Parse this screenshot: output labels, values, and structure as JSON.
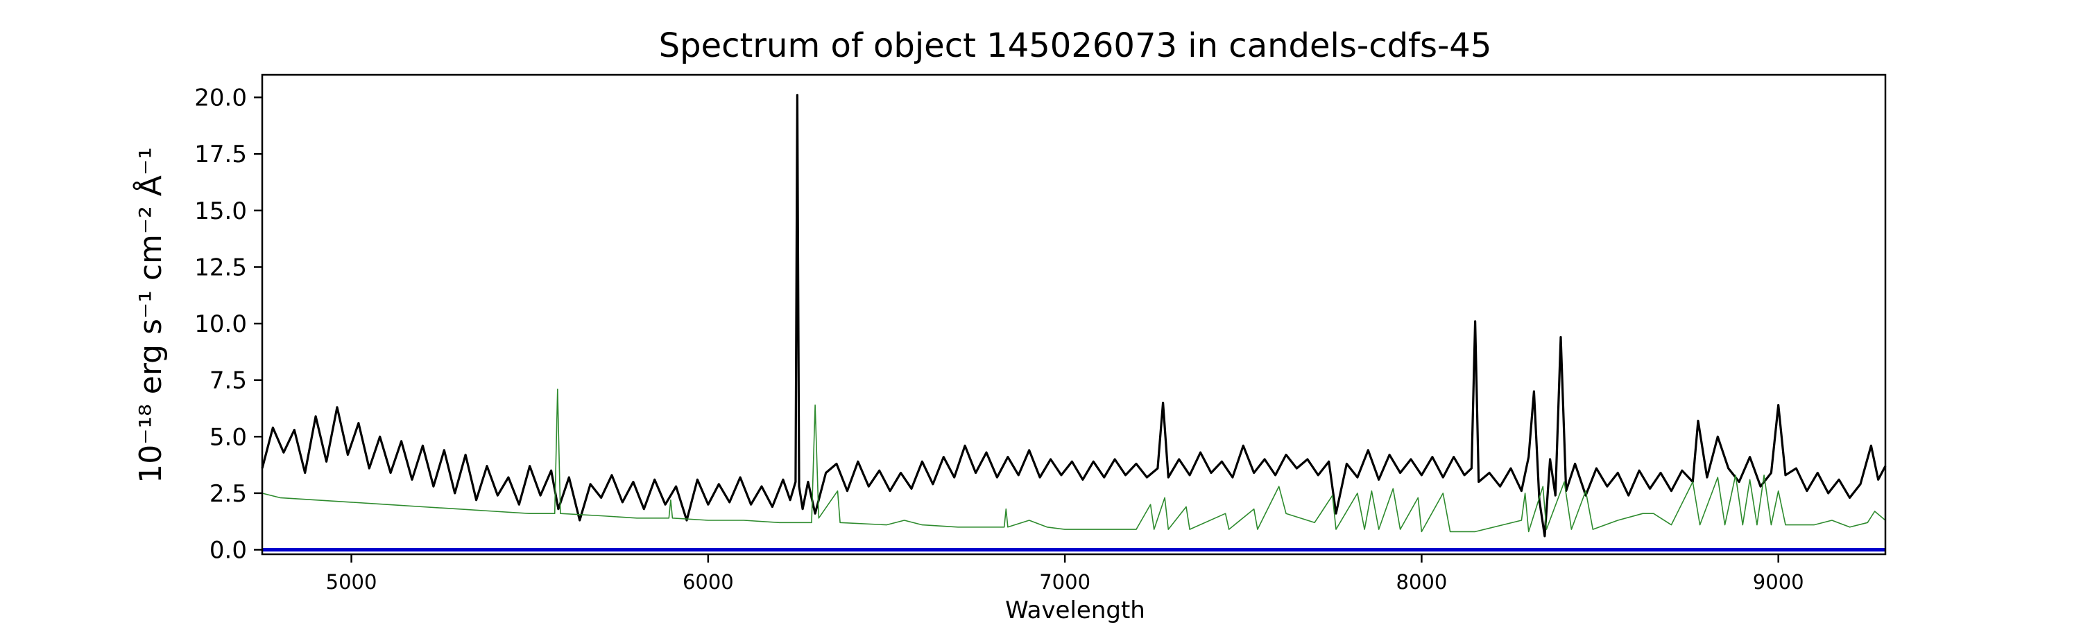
{
  "chart_data": {
    "type": "line",
    "title": "Spectrum of object 145026073 in candels-cdfs-45",
    "xlabel": "Wavelength",
    "ylabel": "10⁻¹⁸ erg s⁻¹ cm⁻² Å⁻¹",
    "xlim": [
      4750,
      9300
    ],
    "ylim": [
      -0.2,
      21.0
    ],
    "x_ticks": [
      5000,
      6000,
      7000,
      8000,
      9000
    ],
    "y_ticks": [
      "0.0",
      "2.5",
      "5.0",
      "7.5",
      "10.0",
      "12.5",
      "15.0",
      "17.5",
      "20.0"
    ],
    "grid": false,
    "legend": "none",
    "series": [
      {
        "color": "#000000",
        "points": [
          [
            4750,
            3.6
          ],
          [
            4780,
            5.4
          ],
          [
            4810,
            4.3
          ],
          [
            4840,
            5.3
          ],
          [
            4870,
            3.4
          ],
          [
            4900,
            5.9
          ],
          [
            4930,
            3.9
          ],
          [
            4960,
            6.3
          ],
          [
            4990,
            4.2
          ],
          [
            5020,
            5.6
          ],
          [
            5050,
            3.6
          ],
          [
            5080,
            5.0
          ],
          [
            5110,
            3.4
          ],
          [
            5140,
            4.8
          ],
          [
            5170,
            3.1
          ],
          [
            5200,
            4.6
          ],
          [
            5230,
            2.8
          ],
          [
            5260,
            4.4
          ],
          [
            5290,
            2.5
          ],
          [
            5320,
            4.2
          ],
          [
            5350,
            2.2
          ],
          [
            5380,
            3.7
          ],
          [
            5410,
            2.4
          ],
          [
            5440,
            3.2
          ],
          [
            5470,
            2.0
          ],
          [
            5500,
            3.7
          ],
          [
            5530,
            2.4
          ],
          [
            5560,
            3.5
          ],
          [
            5580,
            1.8
          ],
          [
            5610,
            3.2
          ],
          [
            5640,
            1.3
          ],
          [
            5670,
            2.9
          ],
          [
            5700,
            2.3
          ],
          [
            5730,
            3.3
          ],
          [
            5760,
            2.1
          ],
          [
            5790,
            3.0
          ],
          [
            5820,
            1.8
          ],
          [
            5850,
            3.1
          ],
          [
            5880,
            2.0
          ],
          [
            5910,
            2.8
          ],
          [
            5940,
            1.3
          ],
          [
            5970,
            3.1
          ],
          [
            6000,
            2.0
          ],
          [
            6030,
            2.9
          ],
          [
            6060,
            2.1
          ],
          [
            6090,
            3.2
          ],
          [
            6120,
            2.0
          ],
          [
            6150,
            2.8
          ],
          [
            6180,
            1.9
          ],
          [
            6210,
            3.1
          ],
          [
            6230,
            2.2
          ],
          [
            6245,
            3.0
          ],
          [
            6250,
            20.1
          ],
          [
            6255,
            2.8
          ],
          [
            6265,
            1.8
          ],
          [
            6280,
            3.0
          ],
          [
            6300,
            1.6
          ],
          [
            6330,
            3.4
          ],
          [
            6360,
            3.8
          ],
          [
            6390,
            2.6
          ],
          [
            6420,
            3.9
          ],
          [
            6450,
            2.8
          ],
          [
            6480,
            3.5
          ],
          [
            6510,
            2.6
          ],
          [
            6540,
            3.4
          ],
          [
            6570,
            2.7
          ],
          [
            6600,
            3.9
          ],
          [
            6630,
            2.9
          ],
          [
            6660,
            4.1
          ],
          [
            6690,
            3.2
          ],
          [
            6720,
            4.6
          ],
          [
            6750,
            3.4
          ],
          [
            6780,
            4.3
          ],
          [
            6810,
            3.2
          ],
          [
            6840,
            4.1
          ],
          [
            6870,
            3.3
          ],
          [
            6900,
            4.4
          ],
          [
            6930,
            3.2
          ],
          [
            6960,
            4.0
          ],
          [
            6990,
            3.3
          ],
          [
            7020,
            3.9
          ],
          [
            7050,
            3.1
          ],
          [
            7080,
            3.9
          ],
          [
            7110,
            3.2
          ],
          [
            7140,
            4.0
          ],
          [
            7170,
            3.3
          ],
          [
            7200,
            3.8
          ],
          [
            7230,
            3.2
          ],
          [
            7260,
            3.6
          ],
          [
            7275,
            6.5
          ],
          [
            7290,
            3.2
          ],
          [
            7320,
            4.0
          ],
          [
            7350,
            3.3
          ],
          [
            7380,
            4.3
          ],
          [
            7410,
            3.4
          ],
          [
            7440,
            3.9
          ],
          [
            7470,
            3.2
          ],
          [
            7500,
            4.6
          ],
          [
            7530,
            3.4
          ],
          [
            7560,
            4.0
          ],
          [
            7590,
            3.3
          ],
          [
            7620,
            4.2
          ],
          [
            7650,
            3.6
          ],
          [
            7680,
            4.0
          ],
          [
            7710,
            3.3
          ],
          [
            7740,
            3.9
          ],
          [
            7760,
            1.6
          ],
          [
            7790,
            3.8
          ],
          [
            7820,
            3.2
          ],
          [
            7850,
            4.4
          ],
          [
            7880,
            3.1
          ],
          [
            7910,
            4.2
          ],
          [
            7940,
            3.4
          ],
          [
            7970,
            4.0
          ],
          [
            8000,
            3.3
          ],
          [
            8030,
            4.1
          ],
          [
            8060,
            3.2
          ],
          [
            8090,
            4.1
          ],
          [
            8120,
            3.3
          ],
          [
            8140,
            3.6
          ],
          [
            8150,
            10.1
          ],
          [
            8160,
            3.0
          ],
          [
            8190,
            3.4
          ],
          [
            8220,
            2.8
          ],
          [
            8250,
            3.6
          ],
          [
            8280,
            2.6
          ],
          [
            8300,
            4.1
          ],
          [
            8315,
            7.0
          ],
          [
            8330,
            2.2
          ],
          [
            8345,
            0.6
          ],
          [
            8360,
            4.0
          ],
          [
            8375,
            2.4
          ],
          [
            8390,
            9.4
          ],
          [
            8405,
            2.6
          ],
          [
            8430,
            3.8
          ],
          [
            8460,
            2.4
          ],
          [
            8490,
            3.6
          ],
          [
            8520,
            2.8
          ],
          [
            8550,
            3.4
          ],
          [
            8580,
            2.4
          ],
          [
            8610,
            3.5
          ],
          [
            8640,
            2.7
          ],
          [
            8670,
            3.4
          ],
          [
            8700,
            2.6
          ],
          [
            8730,
            3.5
          ],
          [
            8760,
            3.0
          ],
          [
            8775,
            5.7
          ],
          [
            8800,
            3.2
          ],
          [
            8830,
            5.0
          ],
          [
            8860,
            3.6
          ],
          [
            8890,
            3.0
          ],
          [
            8920,
            4.1
          ],
          [
            8950,
            2.8
          ],
          [
            8980,
            3.4
          ],
          [
            9000,
            6.4
          ],
          [
            9020,
            3.3
          ],
          [
            9050,
            3.6
          ],
          [
            9080,
            2.6
          ],
          [
            9110,
            3.4
          ],
          [
            9140,
            2.5
          ],
          [
            9170,
            3.1
          ],
          [
            9200,
            2.3
          ],
          [
            9230,
            2.9
          ],
          [
            9260,
            4.6
          ],
          [
            9280,
            3.1
          ],
          [
            9300,
            3.7
          ]
        ]
      },
      {
        "color": "#2e8b2e",
        "points": [
          [
            4750,
            2.5
          ],
          [
            4800,
            2.3
          ],
          [
            4900,
            2.2
          ],
          [
            5000,
            2.1
          ],
          [
            5100,
            2.0
          ],
          [
            5200,
            1.9
          ],
          [
            5300,
            1.8
          ],
          [
            5400,
            1.7
          ],
          [
            5500,
            1.6
          ],
          [
            5570,
            1.6
          ],
          [
            5578,
            7.1
          ],
          [
            5586,
            1.6
          ],
          [
            5700,
            1.5
          ],
          [
            5800,
            1.4
          ],
          [
            5890,
            1.4
          ],
          [
            5895,
            2.2
          ],
          [
            5900,
            1.4
          ],
          [
            6000,
            1.3
          ],
          [
            6100,
            1.3
          ],
          [
            6200,
            1.2
          ],
          [
            6290,
            1.2
          ],
          [
            6300,
            6.4
          ],
          [
            6310,
            1.4
          ],
          [
            6363,
            2.6
          ],
          [
            6370,
            1.2
          ],
          [
            6500,
            1.1
          ],
          [
            6550,
            1.3
          ],
          [
            6600,
            1.1
          ],
          [
            6700,
            1.0
          ],
          [
            6830,
            1.0
          ],
          [
            6835,
            1.8
          ],
          [
            6840,
            1.0
          ],
          [
            6900,
            1.3
          ],
          [
            6950,
            1.0
          ],
          [
            7000,
            0.9
          ],
          [
            7100,
            0.9
          ],
          [
            7200,
            0.9
          ],
          [
            7240,
            2.0
          ],
          [
            7250,
            0.9
          ],
          [
            7280,
            2.3
          ],
          [
            7290,
            0.9
          ],
          [
            7340,
            1.9
          ],
          [
            7350,
            0.9
          ],
          [
            7450,
            1.6
          ],
          [
            7460,
            0.9
          ],
          [
            7530,
            1.8
          ],
          [
            7540,
            0.9
          ],
          [
            7600,
            2.8
          ],
          [
            7620,
            1.6
          ],
          [
            7700,
            1.2
          ],
          [
            7750,
            2.4
          ],
          [
            7760,
            0.9
          ],
          [
            7820,
            2.5
          ],
          [
            7840,
            0.9
          ],
          [
            7860,
            2.6
          ],
          [
            7880,
            0.9
          ],
          [
            7920,
            2.7
          ],
          [
            7940,
            0.9
          ],
          [
            7990,
            2.3
          ],
          [
            8000,
            0.8
          ],
          [
            8060,
            2.5
          ],
          [
            8080,
            0.8
          ],
          [
            8150,
            0.8
          ],
          [
            8280,
            1.3
          ],
          [
            8290,
            2.5
          ],
          [
            8300,
            0.8
          ],
          [
            8340,
            2.8
          ],
          [
            8350,
            0.9
          ],
          [
            8400,
            3.0
          ],
          [
            8420,
            0.9
          ],
          [
            8460,
            2.6
          ],
          [
            8480,
            0.9
          ],
          [
            8550,
            1.3
          ],
          [
            8620,
            1.6
          ],
          [
            8650,
            1.6
          ],
          [
            8700,
            1.1
          ],
          [
            8760,
            3.0
          ],
          [
            8780,
            1.1
          ],
          [
            8830,
            3.2
          ],
          [
            8850,
            1.1
          ],
          [
            8880,
            3.3
          ],
          [
            8900,
            1.1
          ],
          [
            8920,
            3.1
          ],
          [
            8940,
            1.1
          ],
          [
            8960,
            3.3
          ],
          [
            8980,
            1.1
          ],
          [
            9000,
            2.6
          ],
          [
            9020,
            1.1
          ],
          [
            9100,
            1.1
          ],
          [
            9150,
            1.3
          ],
          [
            9200,
            1.0
          ],
          [
            9250,
            1.2
          ],
          [
            9270,
            1.7
          ],
          [
            9300,
            1.3
          ]
        ]
      },
      {
        "color": "#0000cc",
        "points": [
          [
            4750,
            0.0
          ],
          [
            9300,
            0.0
          ]
        ]
      }
    ]
  }
}
